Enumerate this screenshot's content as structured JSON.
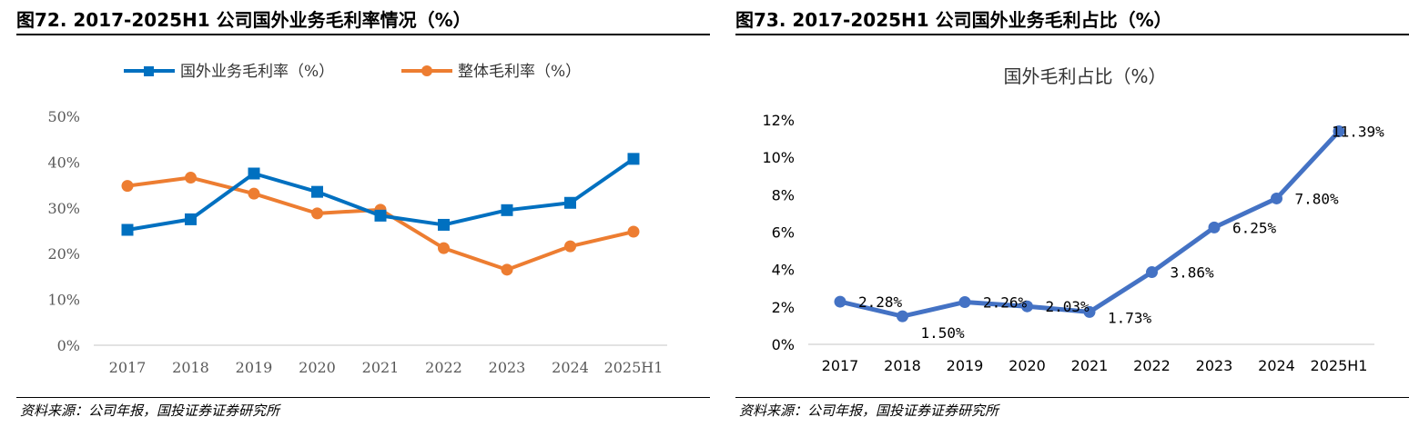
{
  "left": {
    "figure_title": "图72. 2017-2025H1 公司国外业务毛利率情况（%）",
    "source": "资料来源：公司年报，国投证券证券研究所",
    "chart_data": {
      "type": "line",
      "categories": [
        "2017",
        "2018",
        "2019",
        "2020",
        "2021",
        "2022",
        "2023",
        "2024",
        "2025H1"
      ],
      "ylim": [
        0,
        50
      ],
      "yticks": [
        "0%",
        "10%",
        "20%",
        "30%",
        "40%",
        "50%"
      ],
      "grid": false,
      "legend_position": "top",
      "series": [
        {
          "name": "国外业务毛利率（%）",
          "color": "#0070C0",
          "marker": "square",
          "values": [
            25.2,
            27.5,
            37.5,
            33.5,
            28.3,
            26.3,
            29.5,
            31.1,
            40.7
          ]
        },
        {
          "name": "整体毛利率（%）",
          "color": "#ED7D31",
          "marker": "circle",
          "values": [
            34.8,
            36.6,
            33.1,
            28.8,
            29.6,
            21.2,
            16.5,
            21.6,
            24.8
          ]
        }
      ]
    }
  },
  "right": {
    "figure_title": "图73. 2017-2025H1 公司国外业务毛利占比（%）",
    "source": "资料来源：公司年报，国投证券证券研究所",
    "chart_data": {
      "type": "line",
      "title": "国外毛利占比（%）",
      "categories": [
        "2017",
        "2018",
        "2019",
        "2020",
        "2021",
        "2022",
        "2023",
        "2024",
        "2025H1"
      ],
      "ylim": [
        0,
        12
      ],
      "yticks": [
        "0%",
        "2%",
        "4%",
        "6%",
        "8%",
        "10%",
        "12%"
      ],
      "grid": false,
      "series": [
        {
          "color": "#4472C4",
          "marker": "circle",
          "values": [
            2.28,
            1.5,
            2.26,
            2.03,
            1.73,
            3.86,
            6.25,
            7.8,
            11.39
          ],
          "labels": [
            "2.28%",
            "1.50%",
            "2.26%",
            "2.03%",
            "1.73%",
            "3.86%",
            "6.25%",
            "7.80%",
            "11.39%"
          ]
        }
      ]
    }
  }
}
